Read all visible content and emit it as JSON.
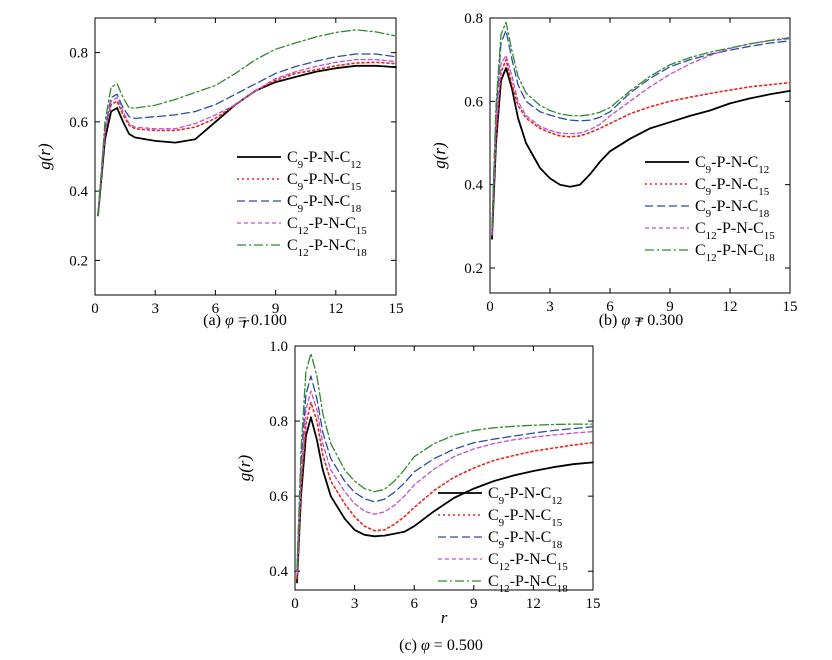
{
  "chart_data": [
    {
      "type": "line",
      "caption_prefix": "(a) ",
      "caption_symbol": "φ",
      "caption_suffix": " = 0.100",
      "xlabel": "r",
      "ylabel": "g(r)",
      "xlim": [
        0,
        15
      ],
      "ylim": [
        0.1,
        0.9
      ],
      "xticks": [
        "0",
        "3",
        "6",
        "9",
        "12",
        "15"
      ],
      "yticks": [
        "0.2",
        "0.4",
        "0.6",
        "0.8"
      ],
      "x": [
        0.15,
        0.5,
        0.8,
        1.1,
        1.4,
        1.7,
        2.0,
        3.0,
        4.0,
        5.0,
        6.0,
        7.0,
        8.0,
        9.0,
        10.0,
        11.0,
        12.0,
        13.0,
        14.0,
        15.0
      ],
      "series": [
        {
          "name_parts": [
            "C",
            "9",
            "-P-N-C",
            "12"
          ],
          "color": "#000000",
          "dash": "",
          "width": 1.8,
          "values": [
            0.33,
            0.55,
            0.63,
            0.64,
            0.6,
            0.565,
            0.555,
            0.545,
            0.54,
            0.55,
            0.6,
            0.65,
            0.69,
            0.715,
            0.73,
            0.745,
            0.755,
            0.762,
            0.762,
            0.758
          ]
        },
        {
          "name_parts": [
            "C",
            "9",
            "-P-N-C",
            "15"
          ],
          "color": "#e8251a",
          "dash": "2,3",
          "width": 1.6,
          "values": [
            0.33,
            0.57,
            0.65,
            0.66,
            0.62,
            0.59,
            0.58,
            0.575,
            0.575,
            0.585,
            0.61,
            0.65,
            0.69,
            0.72,
            0.74,
            0.75,
            0.762,
            0.77,
            0.772,
            0.768
          ]
        },
        {
          "name_parts": [
            "C",
            "9",
            "-P-N-C",
            "18"
          ],
          "color": "#2b4ea0",
          "dash": "8,4",
          "width": 1.3,
          "values": [
            0.33,
            0.58,
            0.67,
            0.68,
            0.64,
            0.615,
            0.61,
            0.615,
            0.62,
            0.63,
            0.65,
            0.68,
            0.71,
            0.74,
            0.76,
            0.775,
            0.788,
            0.796,
            0.796,
            0.788
          ]
        },
        {
          "name_parts": [
            "C",
            "12",
            "-P-N-C",
            "15"
          ],
          "color": "#c24fd0",
          "dash": "4,3",
          "width": 1.3,
          "values": [
            0.33,
            0.57,
            0.66,
            0.67,
            0.63,
            0.595,
            0.585,
            0.58,
            0.58,
            0.595,
            0.62,
            0.65,
            0.69,
            0.725,
            0.745,
            0.76,
            0.772,
            0.78,
            0.78,
            0.774
          ]
        },
        {
          "name_parts": [
            "C",
            "12",
            "-P-N-C",
            "18"
          ],
          "color": "#2e8b2e",
          "dash": "9,3,2,3",
          "width": 1.3,
          "values": [
            0.33,
            0.6,
            0.7,
            0.71,
            0.67,
            0.64,
            0.64,
            0.648,
            0.665,
            0.685,
            0.705,
            0.74,
            0.78,
            0.81,
            0.828,
            0.845,
            0.858,
            0.866,
            0.86,
            0.848
          ]
        }
      ]
    },
    {
      "type": "line",
      "caption_prefix": "(b) ",
      "caption_symbol": "φ",
      "caption_suffix": " = 0.300",
      "xlabel": "r",
      "ylabel": "g(r)",
      "xlim": [
        0,
        15
      ],
      "ylim": [
        0.14,
        0.8
      ],
      "xticks": [
        "0",
        "3",
        "6",
        "9",
        "12",
        "15"
      ],
      "yticks": [
        "0.2",
        "0.4",
        "0.6",
        "0.8"
      ],
      "x": [
        0.1,
        0.3,
        0.55,
        0.8,
        1.1,
        1.4,
        1.8,
        2.5,
        3.0,
        3.5,
        4.0,
        4.5,
        5.0,
        5.5,
        6.0,
        7.0,
        8.0,
        9.0,
        10.0,
        11.0,
        12.0,
        13.0,
        14.0,
        15.0
      ],
      "series": [
        {
          "name_parts": [
            "C",
            "9",
            "-P-N-C",
            "12"
          ],
          "color": "#000000",
          "dash": "",
          "width": 1.8,
          "values": [
            0.27,
            0.5,
            0.65,
            0.68,
            0.63,
            0.56,
            0.5,
            0.44,
            0.415,
            0.4,
            0.395,
            0.4,
            0.425,
            0.455,
            0.48,
            0.51,
            0.535,
            0.55,
            0.565,
            0.578,
            0.595,
            0.607,
            0.617,
            0.625
          ]
        },
        {
          "name_parts": [
            "C",
            "9",
            "-P-N-C",
            "15"
          ],
          "color": "#e8251a",
          "dash": "2,3",
          "width": 1.6,
          "values": [
            0.28,
            0.52,
            0.67,
            0.7,
            0.64,
            0.59,
            0.56,
            0.535,
            0.525,
            0.517,
            0.515,
            0.517,
            0.525,
            0.535,
            0.547,
            0.57,
            0.587,
            0.6,
            0.61,
            0.619,
            0.627,
            0.635,
            0.64,
            0.645
          ]
        },
        {
          "name_parts": [
            "C",
            "9",
            "-P-N-C",
            "18"
          ],
          "color": "#2b4ea0",
          "dash": "8,4",
          "width": 1.3,
          "values": [
            0.29,
            0.57,
            0.74,
            0.77,
            0.7,
            0.64,
            0.6,
            0.575,
            0.567,
            0.56,
            0.555,
            0.553,
            0.555,
            0.562,
            0.575,
            0.62,
            0.655,
            0.683,
            0.7,
            0.713,
            0.723,
            0.732,
            0.74,
            0.745
          ]
        },
        {
          "name_parts": [
            "C",
            "12",
            "-P-N-C",
            "15"
          ],
          "color": "#c24fd0",
          "dash": "4,3",
          "width": 1.3,
          "values": [
            0.28,
            0.54,
            0.69,
            0.71,
            0.66,
            0.6,
            0.566,
            0.54,
            0.53,
            0.524,
            0.522,
            0.524,
            0.532,
            0.545,
            0.565,
            0.6,
            0.635,
            0.665,
            0.69,
            0.71,
            0.727,
            0.738,
            0.746,
            0.75
          ]
        },
        {
          "name_parts": [
            "C",
            "12",
            "-P-N-C",
            "18"
          ],
          "color": "#2e8b2e",
          "dash": "9,3,2,3",
          "width": 1.3,
          "values": [
            0.3,
            0.59,
            0.76,
            0.79,
            0.72,
            0.66,
            0.62,
            0.59,
            0.578,
            0.57,
            0.566,
            0.565,
            0.568,
            0.574,
            0.585,
            0.625,
            0.66,
            0.688,
            0.705,
            0.718,
            0.728,
            0.738,
            0.746,
            0.753
          ]
        }
      ]
    },
    {
      "type": "line",
      "caption_prefix": "(c) ",
      "caption_symbol": "φ",
      "caption_suffix": " = 0.500",
      "xlabel": "r",
      "ylabel": "g(r)",
      "xlim": [
        0,
        15
      ],
      "ylim": [
        0.35,
        1.0
      ],
      "xticks": [
        "0",
        "3",
        "6",
        "9",
        "12",
        "15"
      ],
      "yticks": [
        "0.4",
        "0.6",
        "0.8",
        "1.0"
      ],
      "x": [
        0.1,
        0.3,
        0.55,
        0.8,
        1.1,
        1.4,
        1.8,
        2.5,
        3.0,
        3.5,
        4.0,
        4.5,
        5.0,
        5.5,
        6.0,
        7.0,
        8.0,
        9.0,
        10.0,
        11.0,
        12.0,
        13.0,
        14.0,
        15.0
      ],
      "series": [
        {
          "name_parts": [
            "C",
            "9",
            "-P-N-C",
            "12"
          ],
          "color": "#000000",
          "dash": "",
          "width": 1.8,
          "values": [
            0.37,
            0.6,
            0.76,
            0.81,
            0.75,
            0.67,
            0.6,
            0.54,
            0.51,
            0.497,
            0.493,
            0.495,
            0.5,
            0.505,
            0.52,
            0.56,
            0.595,
            0.62,
            0.64,
            0.655,
            0.667,
            0.677,
            0.685,
            0.69
          ]
        },
        {
          "name_parts": [
            "C",
            "9",
            "-P-N-C",
            "15"
          ],
          "color": "#e8251a",
          "dash": "2,3",
          "width": 1.6,
          "values": [
            0.38,
            0.62,
            0.79,
            0.85,
            0.8,
            0.71,
            0.64,
            0.58,
            0.545,
            0.52,
            0.508,
            0.51,
            0.525,
            0.545,
            0.57,
            0.615,
            0.65,
            0.675,
            0.695,
            0.708,
            0.72,
            0.728,
            0.736,
            0.743
          ]
        },
        {
          "name_parts": [
            "C",
            "9",
            "-P-N-C",
            "18"
          ],
          "color": "#2b4ea0",
          "dash": "8,4",
          "width": 1.3,
          "values": [
            0.4,
            0.68,
            0.87,
            0.92,
            0.86,
            0.77,
            0.7,
            0.64,
            0.61,
            0.593,
            0.585,
            0.592,
            0.61,
            0.635,
            0.665,
            0.7,
            0.725,
            0.742,
            0.752,
            0.76,
            0.768,
            0.775,
            0.78,
            0.785
          ]
        },
        {
          "name_parts": [
            "C",
            "12",
            "-P-N-C",
            "15"
          ],
          "color": "#c24fd0",
          "dash": "4,3",
          "width": 1.3,
          "values": [
            0.39,
            0.65,
            0.83,
            0.88,
            0.83,
            0.74,
            0.67,
            0.612,
            0.58,
            0.56,
            0.552,
            0.558,
            0.575,
            0.6,
            0.63,
            0.672,
            0.705,
            0.726,
            0.74,
            0.75,
            0.757,
            0.763,
            0.768,
            0.772
          ]
        },
        {
          "name_parts": [
            "C",
            "12",
            "-P-N-C",
            "18"
          ],
          "color": "#2e8b2e",
          "dash": "9,3,2,3",
          "width": 1.3,
          "values": [
            0.41,
            0.72,
            0.93,
            0.98,
            0.92,
            0.82,
            0.74,
            0.67,
            0.64,
            0.62,
            0.612,
            0.618,
            0.64,
            0.67,
            0.705,
            0.74,
            0.762,
            0.775,
            0.782,
            0.786,
            0.789,
            0.791,
            0.792,
            0.792
          ]
        }
      ]
    }
  ]
}
